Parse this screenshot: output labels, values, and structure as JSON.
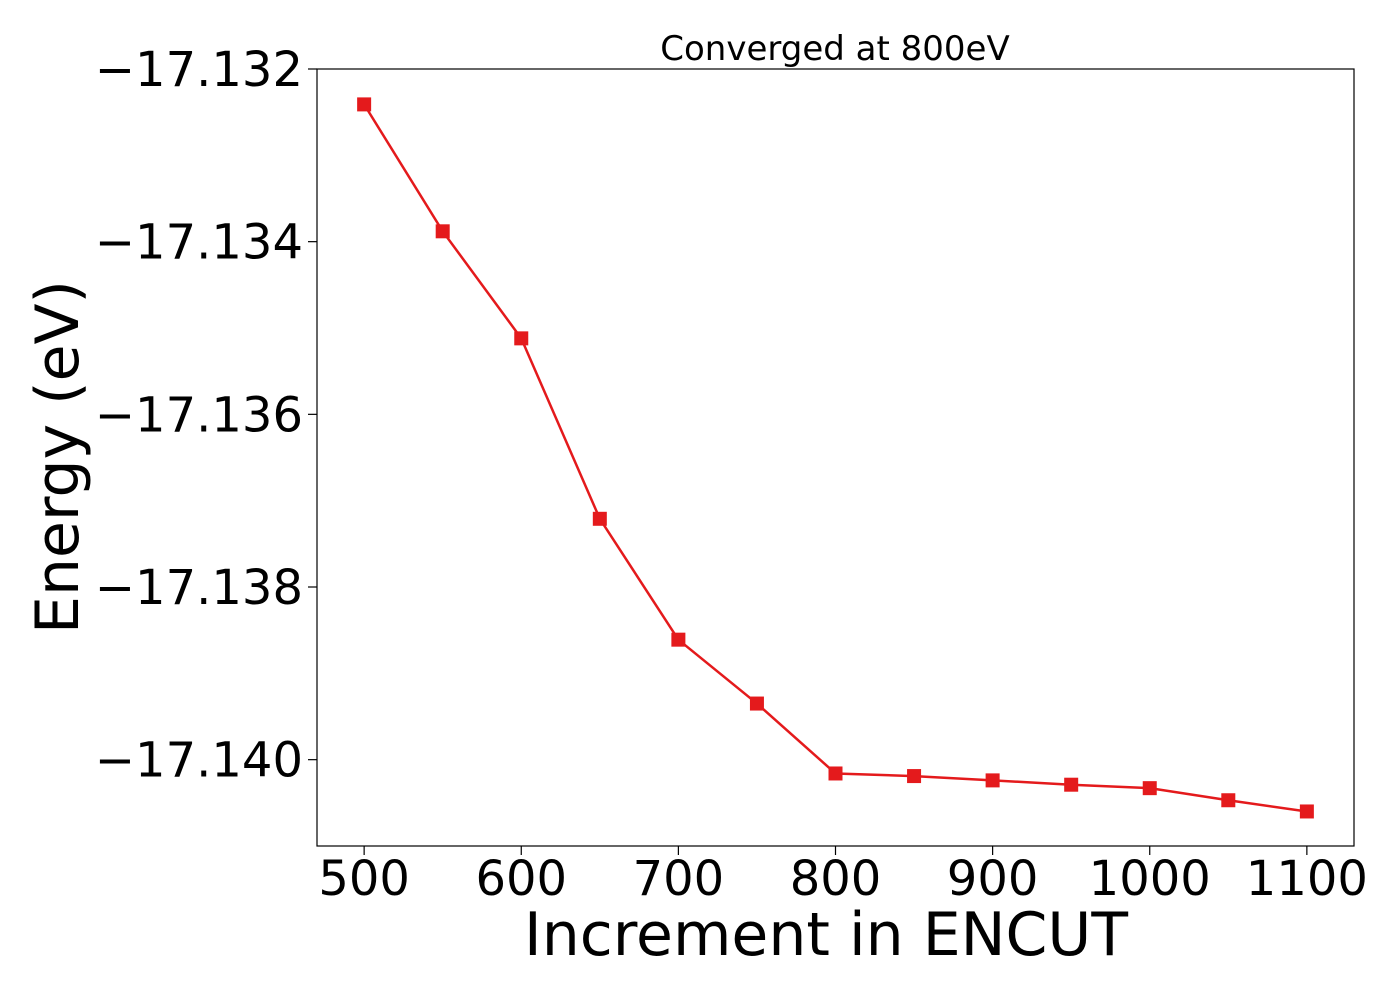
{
  "chart_data": {
    "type": "line",
    "title": "Converged at 800eV",
    "xlabel": "Increment in ENCUT",
    "ylabel": "Energy (eV)",
    "xlim": [
      470,
      1130
    ],
    "ylim": [
      -17.141,
      -17.132
    ],
    "xticks": [
      500,
      600,
      700,
      800,
      900,
      1000,
      1100
    ],
    "xtick_labels": [
      "500",
      "600",
      "700",
      "800",
      "900",
      "1000",
      "1100"
    ],
    "yticks": [
      -17.132,
      -17.134,
      -17.136,
      -17.138,
      -17.14
    ],
    "ytick_labels": [
      "−17.132",
      "−17.134",
      "−17.136",
      "−17.138",
      "−17.140"
    ],
    "grid": false,
    "series": [
      {
        "color": "#e41a1c",
        "marker": "square",
        "x": [
          500,
          550,
          600,
          650,
          700,
          750,
          800,
          850,
          900,
          950,
          1000,
          1050,
          1100
        ],
        "y": [
          -17.13241,
          -17.13388,
          -17.13512,
          -17.13721,
          -17.13861,
          -17.13935,
          -17.14016,
          -17.14019,
          -17.14024,
          -17.14029,
          -17.14033,
          -17.14047,
          -17.1406
        ]
      }
    ]
  }
}
